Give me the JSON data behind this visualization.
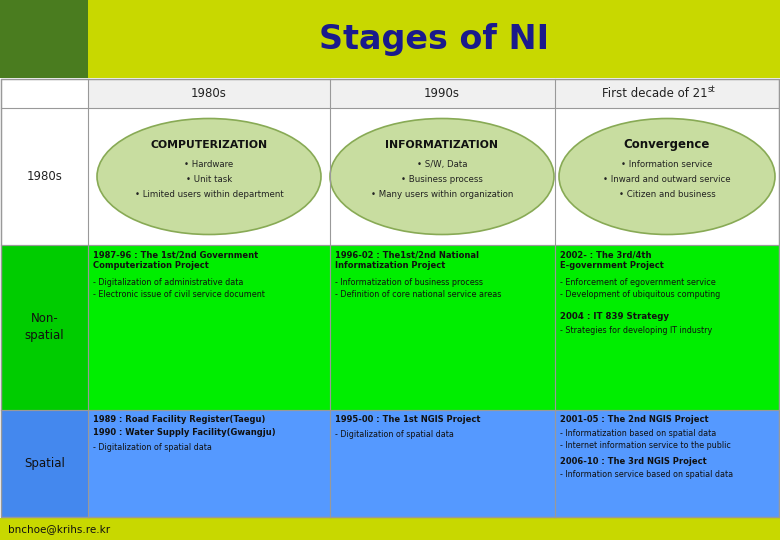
{
  "title": "Stages of NI",
  "title_color": "#1a1a8c",
  "title_bg_light": "#c8d800",
  "title_bg_dark": "#4a7c1f",
  "footer_text": "bnchoe@krihs.re.kr",
  "footer_bg": "#c8d800",
  "col_headers": [
    "1980s",
    "1990s",
    "First decade of 21st"
  ],
  "row0_bg": "#ffffff",
  "row1_label": "1980s",
  "row1_bg": "#ffffff",
  "row2_label": "Non-\nspatial",
  "row2_bg": "#00ee00",
  "row2_label_bg": "#00cc00",
  "row3_label": "Spatial",
  "row3_bg": "#5599ff",
  "row3_label_bg": "#4488ee",
  "ellipse_fill": "#c8dda0",
  "ellipse_edge": "#88aa55",
  "ellipse_titles": [
    "COMPUTERIZATION",
    "INFORMATIZATION",
    "Convergence"
  ],
  "ellipse_bullets": [
    [
      "• Hardware",
      "• Unit task",
      "• Limited users within department"
    ],
    [
      "• S/W, Data",
      "• Business process",
      "• Many users within organization"
    ],
    [
      "• Information service",
      "• Inward and outward service",
      "• Citizen and business"
    ]
  ],
  "ns_bold": [
    "1987-96 : The 1st/2nd Government\nComputerization Project",
    "1996-02 : The1st/2nd National\nInformatization Project",
    "2002- : The 3rd/4th\nE-government Project"
  ],
  "ns_normal": [
    [
      "- Digitalization of administrative data",
      "- Electronic issue of civil service document"
    ],
    [
      "- Informatization of business process",
      "- Definition of core national service areas"
    ],
    [
      "- Enforcement of egovernment service",
      "- Development of ubiquitous computing"
    ]
  ],
  "ns_extra_bold": "2004 : IT 839 Strategy",
  "ns_extra_normal": "- Strategies for developing IT industry",
  "sp_bold1": [
    "1989 : Road Facility Register(Taegu)",
    "1990 : Water Supply Facility(Gwangju)"
  ],
  "sp_norm1": "- Digitalization of spatial data",
  "sp_bold2": "1995-00 : The 1st NGIS Project",
  "sp_norm2": "- Digitalization of spatial data",
  "sp_bold3a": "2001-05 : The 2nd NGIS Project",
  "sp_norm3a": [
    "- Informatization based on spatial data",
    "- Internet information service to the public"
  ],
  "sp_bold3b": "2006-10 : The 3rd NGIS Project",
  "sp_norm3b": "- Information service based on spatial data"
}
